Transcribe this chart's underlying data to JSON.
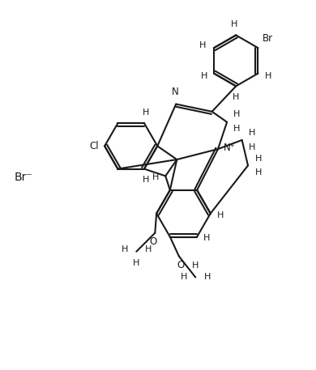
{
  "bg_color": "#ffffff",
  "line_color": "#1a1a1a",
  "text_color": "#1a1a1a",
  "bond_lw": 1.5,
  "font_size": 8.0,
  "figsize": [
    3.9,
    4.57
  ],
  "dpi": 100,
  "xlim": [
    -1.0,
    9.5
  ],
  "ylim": [
    -0.5,
    11.0
  ]
}
